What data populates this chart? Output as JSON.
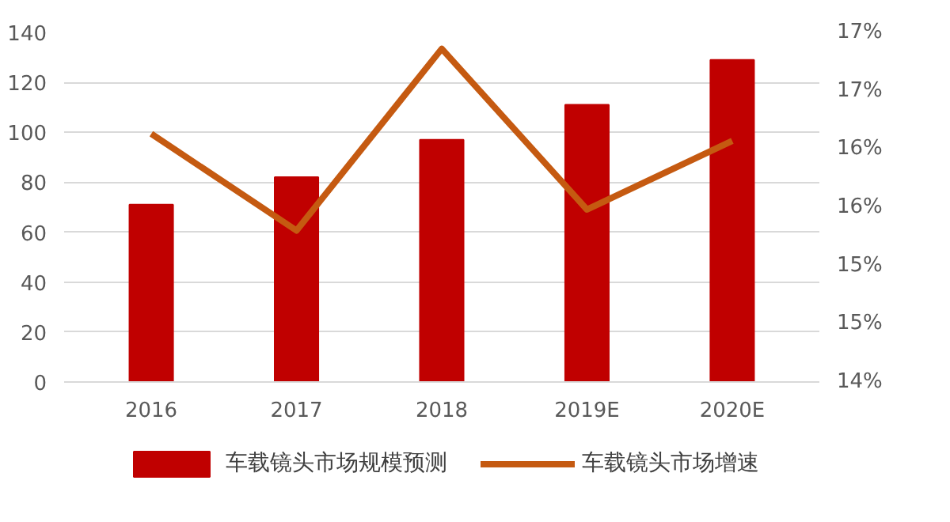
{
  "chart_data": {
    "type": "bar",
    "categories": [
      "2016",
      "2017",
      "2018",
      "2019E",
      "2020E"
    ],
    "series": [
      {
        "name": "车载镜头市场规模预测",
        "color": "#c00000",
        "values": [
          71,
          82,
          97,
          111,
          129
        ]
      },
      {
        "name": "车载镜头市场增速",
        "color": "#c55a11",
        "type": "line",
        "axis": "y2",
        "values": [
          16.13,
          15.3,
          16.86,
          15.48,
          16.07
        ]
      }
    ],
    "ylim": [
      0,
      140
    ],
    "yticks": [
      0,
      20,
      40,
      60,
      80,
      100,
      120,
      140
    ],
    "y2lim": [
      14,
      17
    ],
    "y2ticks": [
      {
        "value": 14,
        "label": "14%"
      },
      {
        "value": 14.5,
        "label": "15%"
      },
      {
        "value": 15,
        "label": "15%"
      },
      {
        "value": 15.5,
        "label": "16%"
      },
      {
        "value": 16,
        "label": "16%"
      },
      {
        "value": 16.5,
        "label": "17%"
      },
      {
        "value": 17,
        "label": "17%"
      }
    ],
    "grid": "y",
    "legend": "bottom",
    "marker": "none",
    "line_style": "solid"
  }
}
